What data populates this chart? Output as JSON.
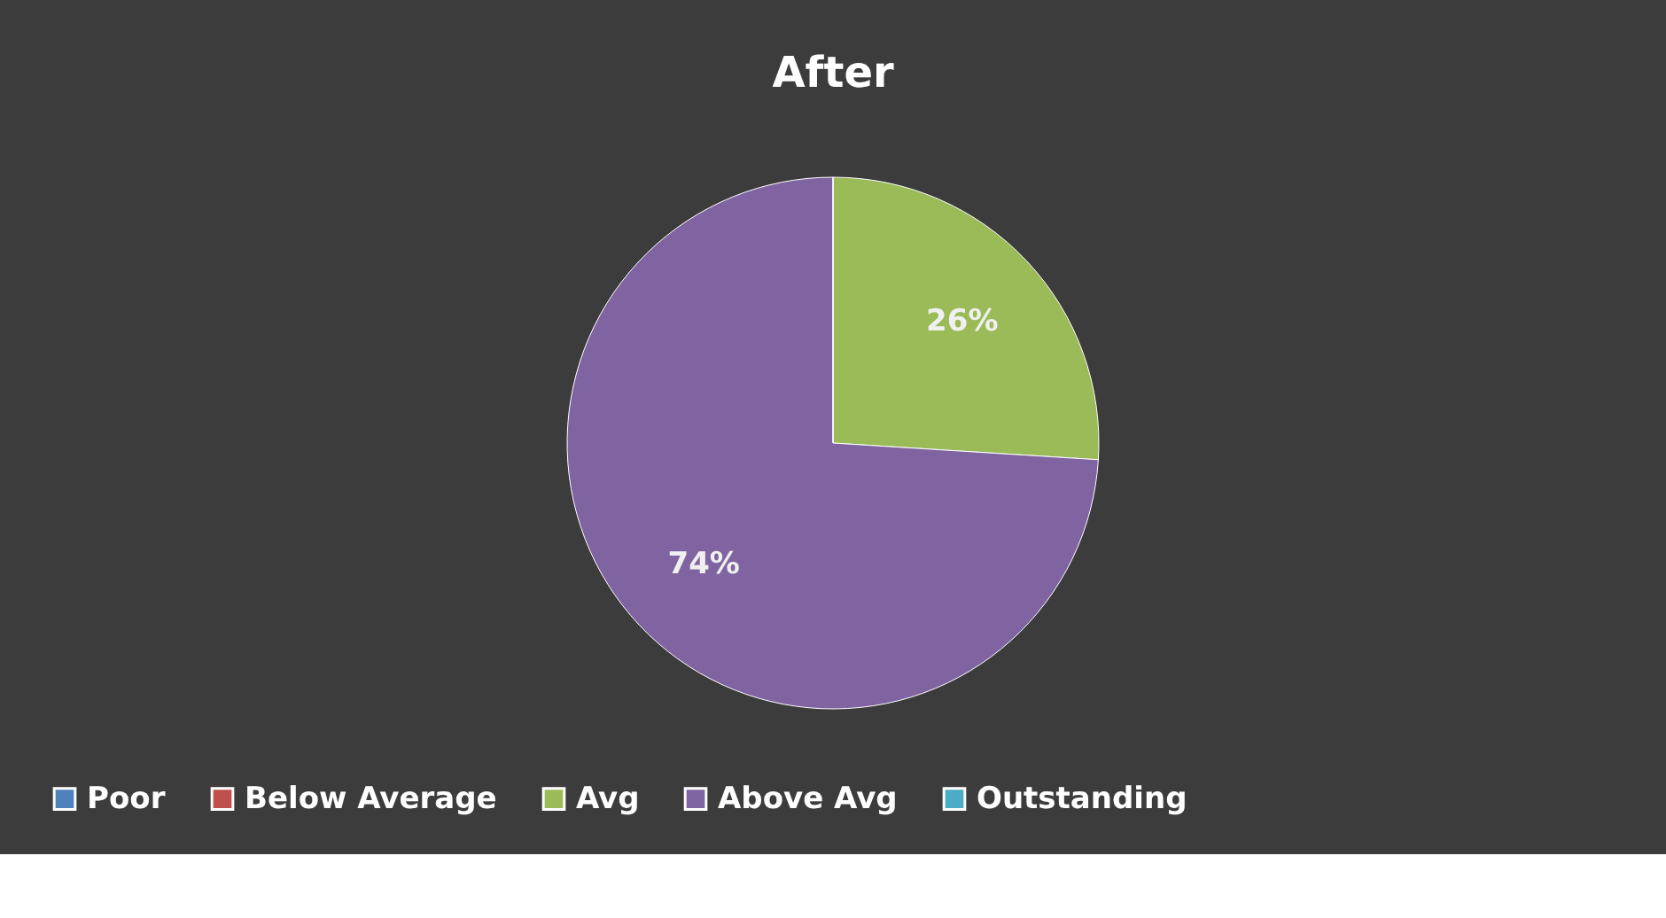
{
  "chart_data": {
    "type": "pie",
    "title": "After",
    "categories": [
      "Poor",
      "Below Average",
      "Avg",
      "Above Avg",
      "Outstanding"
    ],
    "values": [
      0,
      0,
      26,
      74,
      0
    ],
    "colors": [
      "#4f81bd",
      "#c0504d",
      "#9bbb59",
      "#8064a2",
      "#4bacc6"
    ],
    "value_labels": [
      null,
      null,
      "26%",
      "74%",
      null
    ],
    "legend": "bottom"
  }
}
